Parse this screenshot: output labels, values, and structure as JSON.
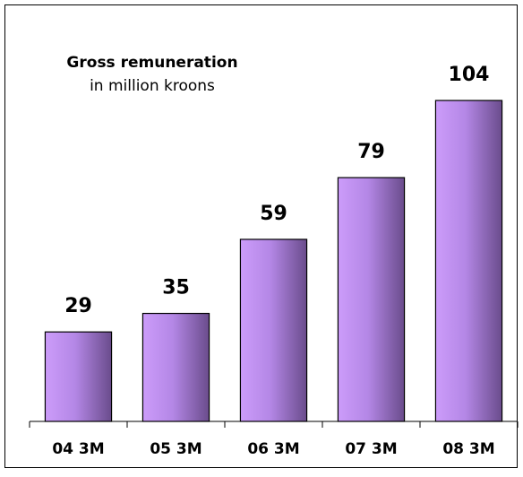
{
  "chart_data": {
    "type": "bar",
    "title": "Gross remuneration",
    "subtitle": "in million kroons",
    "categories": [
      "04 3M",
      "05 3M",
      "06 3M",
      "07 3M",
      "08 3M"
    ],
    "values": [
      29,
      35,
      59,
      79,
      104
    ],
    "color": "#b088e0",
    "ylim": [
      0,
      120
    ]
  }
}
